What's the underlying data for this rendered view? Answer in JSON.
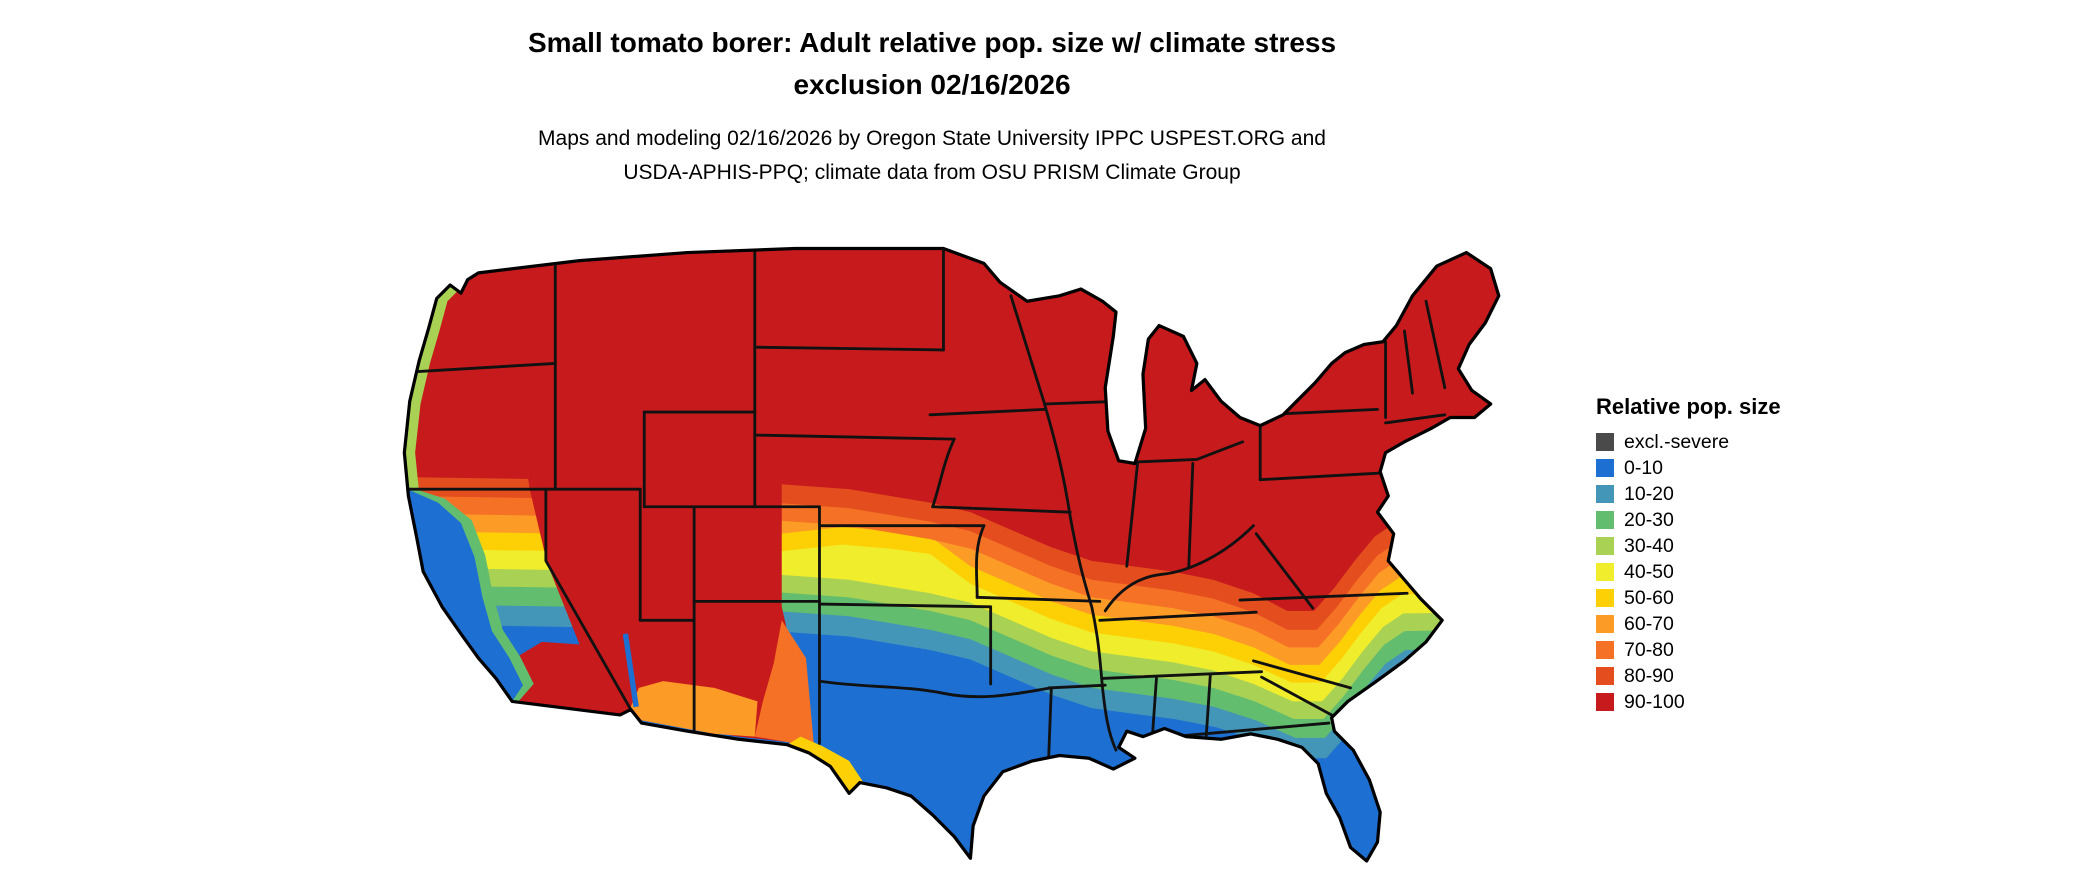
{
  "title": {
    "line1": "Small tomato borer: Adult relative pop. size w/ climate stress",
    "line2": "exclusion 02/16/2026"
  },
  "subtitle": {
    "line1": "Maps and modeling 02/16/2026 by Oregon State University IPPC USPEST.ORG and",
    "line2": "USDA-APHIS-PPQ; climate data from OSU PRISM Climate Group"
  },
  "legend": {
    "title": "Relative pop. size",
    "items": [
      {
        "label": "excl.-severe",
        "range": "excl",
        "color": "#4a4a4a"
      },
      {
        "label": "0-10",
        "range": "0-10",
        "color": "#1d6fd1"
      },
      {
        "label": "10-20",
        "range": "10-20",
        "color": "#4396b8"
      },
      {
        "label": "20-30",
        "range": "20-30",
        "color": "#63bd6e"
      },
      {
        "label": "30-40",
        "range": "30-40",
        "color": "#a9d153"
      },
      {
        "label": "40-50",
        "range": "40-50",
        "color": "#f0ee2c"
      },
      {
        "label": "50-60",
        "range": "50-60",
        "color": "#fdd005"
      },
      {
        "label": "60-70",
        "range": "60-70",
        "color": "#fd9b27"
      },
      {
        "label": "70-80",
        "range": "70-80",
        "color": "#f47125"
      },
      {
        "label": "80-90",
        "range": "80-90",
        "color": "#e44d1d"
      },
      {
        "label": "90-100",
        "range": "90-100",
        "color": "#c61a1c"
      }
    ]
  },
  "map": {
    "outline_color": "#000000",
    "state_border_color": "#111111"
  }
}
